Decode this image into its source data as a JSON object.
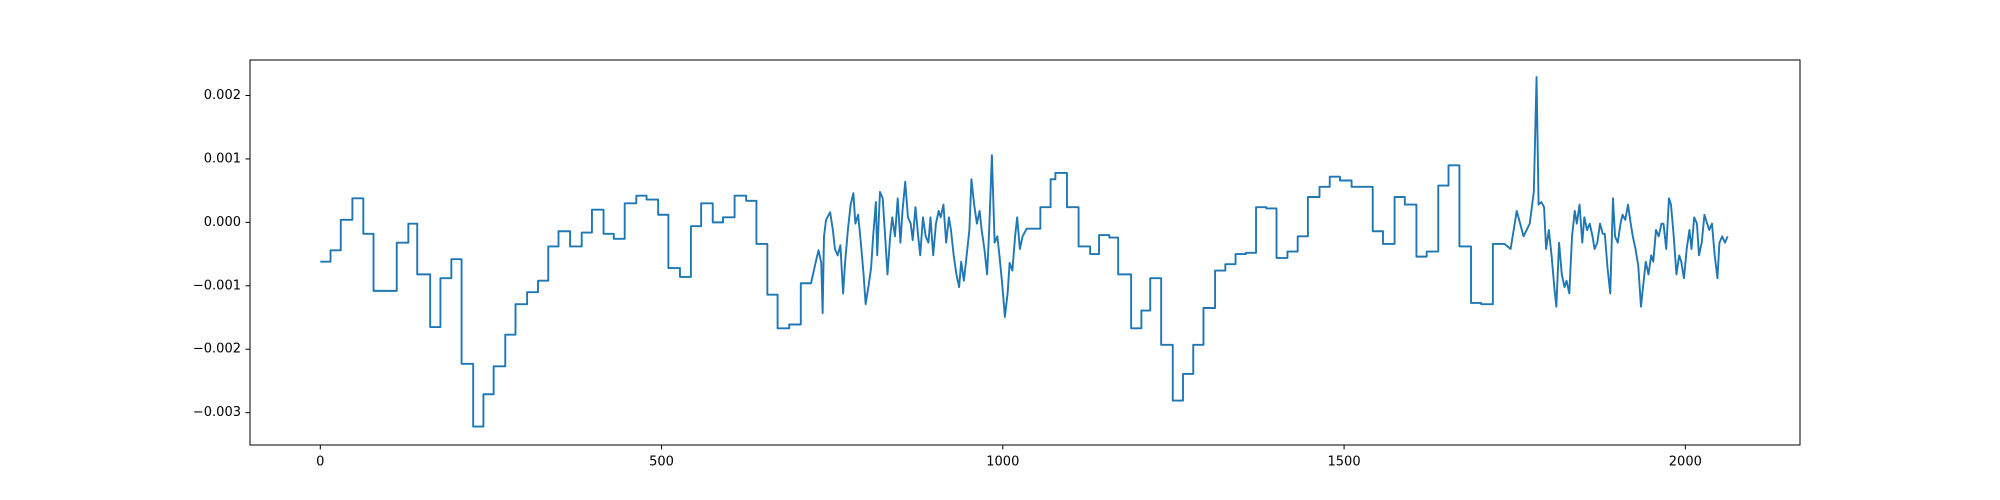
{
  "chart_data": {
    "type": "line",
    "color": "#1f77b4",
    "xlim": [
      -103,
      2168
    ],
    "ylim": [
      -0.00351,
      0.00256
    ],
    "xticks": [
      0,
      500,
      1000,
      1500,
      2000
    ],
    "yticks": [
      {
        "value": -0.003,
        "label": "−0.003"
      },
      {
        "value": -0.002,
        "label": "−0.002"
      },
      {
        "value": -0.001,
        "label": "−0.001"
      },
      {
        "value": 0,
        "label": "0.000"
      },
      {
        "value": 0.001,
        "label": "0.001"
      },
      {
        "value": 0.002,
        "label": "0.002"
      }
    ],
    "x": [
      0,
      15,
      15,
      30,
      30,
      47,
      47,
      63,
      63,
      78,
      78,
      112,
      112,
      129,
      129,
      142,
      142,
      161,
      161,
      176,
      176,
      192,
      192,
      207,
      207,
      224,
      224,
      239,
      239,
      254,
      254,
      271,
      271,
      286,
      286,
      303,
      303,
      319,
      319,
      334,
      334,
      349,
      349,
      366,
      366,
      383,
      383,
      398,
      398,
      415,
      415,
      430,
      430,
      446,
      446,
      463,
      463,
      478,
      478,
      495,
      495,
      510,
      510,
      527,
      527,
      543,
      543,
      558,
      558,
      575,
      575,
      590,
      590,
      607,
      607,
      624,
      624,
      639,
      639,
      655,
      655,
      670,
      670,
      687,
      687,
      704,
      704,
      719,
      726,
      730,
      734,
      736,
      738,
      741,
      747,
      751,
      754,
      758,
      762,
      766,
      769,
      773,
      777,
      781,
      784,
      788,
      792,
      796,
      799,
      803,
      807,
      810,
      814,
      816,
      820,
      824,
      827,
      831,
      835,
      838,
      842,
      846,
      850,
      853,
      857,
      861,
      865,
      868,
      872,
      876,
      879,
      883,
      887,
      891,
      894,
      898,
      902,
      906,
      909,
      913,
      917,
      921,
      924,
      928,
      932,
      936,
      939,
      943,
      947,
      951,
      954,
      958,
      962,
      966,
      969,
      973,
      977,
      980,
      984,
      988,
      992,
      995,
      999,
      1003,
      1007,
      1010,
      1014,
      1018,
      1021,
      1025,
      1029,
      1035,
      1055,
      1055,
      1070,
      1070,
      1077,
      1077,
      1094,
      1094,
      1111,
      1111,
      1128,
      1128,
      1141,
      1141,
      1156,
      1156,
      1169,
      1169,
      1188,
      1188,
      1203,
      1203,
      1216,
      1216,
      1232,
      1232,
      1249,
      1249,
      1264,
      1264,
      1279,
      1279,
      1294,
      1294,
      1311,
      1311,
      1326,
      1326,
      1341,
      1341,
      1356,
      1356,
      1371,
      1371,
      1386,
      1386,
      1401,
      1401,
      1417,
      1417,
      1432,
      1432,
      1447,
      1447,
      1464,
      1464,
      1479,
      1479,
      1494,
      1494,
      1511,
      1511,
      1542,
      1542,
      1557,
      1557,
      1574,
      1574,
      1589,
      1589,
      1606,
      1606,
      1621,
      1621,
      1638,
      1638,
      1653,
      1653,
      1669,
      1669,
      1686,
      1686,
      1701,
      1701,
      1718,
      1718,
      1735,
      1744,
      1753,
      1763,
      1772,
      1778,
      1782,
      1785,
      1789,
      1793,
      1796,
      1800,
      1804,
      1808,
      1811,
      1815,
      1819,
      1823,
      1826,
      1830,
      1834,
      1838,
      1841,
      1845,
      1849,
      1852,
      1856,
      1860,
      1864,
      1867,
      1871,
      1875,
      1879,
      1882,
      1886,
      1890,
      1894,
      1897,
      1901,
      1905,
      1908,
      1912,
      1916,
      1920,
      1923,
      1927,
      1931,
      1935,
      1938,
      1942,
      1946,
      1950,
      1953,
      1957,
      1961,
      1965,
      1968,
      1972,
      1976,
      1979,
      1983,
      1987,
      1991,
      1994,
      1998,
      2002,
      2006,
      2009,
      2013,
      2017,
      2020,
      2024,
      2028,
      2032,
      2035,
      2039,
      2043,
      2047,
      2050,
      2054,
      2058,
      2062
    ],
    "values": [
      -0.00062,
      -0.00062,
      -0.00044,
      -0.00044,
      4e-05,
      4e-05,
      0.00038,
      0.00038,
      -0.00018,
      -0.00018,
      -0.00108,
      -0.00108,
      -0.00032,
      -0.00032,
      -2e-05,
      -2e-05,
      -0.00082,
      -0.00082,
      -0.00165,
      -0.00165,
      -0.00088,
      -0.00088,
      -0.00058,
      -0.00058,
      -0.00223,
      -0.00223,
      -0.00322,
      -0.00322,
      -0.00271,
      -0.00271,
      -0.00227,
      -0.00227,
      -0.00177,
      -0.00177,
      -0.00129,
      -0.00129,
      -0.0011,
      -0.0011,
      -0.00092,
      -0.00092,
      -0.00038,
      -0.00038,
      -0.00014,
      -0.00014,
      -0.00038,
      -0.00038,
      -0.00016,
      -0.00016,
      0.0002,
      0.0002,
      -0.00018,
      -0.00018,
      -0.00026,
      -0.00026,
      0.0003,
      0.0003,
      0.00042,
      0.00042,
      0.00036,
      0.00036,
      0.00012,
      0.00012,
      -0.00072,
      -0.00072,
      -0.00086,
      -0.00086,
      -6e-05,
      -6e-05,
      0.0003,
      0.0003,
      0,
      0,
      8e-05,
      8e-05,
      0.00042,
      0.00042,
      0.00034,
      0.00034,
      -0.00034,
      -0.00034,
      -0.00114,
      -0.00114,
      -0.00167,
      -0.00167,
      -0.00161,
      -0.00161,
      -0.00096,
      -0.00096,
      -0.00062,
      -0.00044,
      -0.00064,
      -0.00143,
      -0.00022,
      4e-05,
      0.00016,
      -0.00012,
      -0.00042,
      -0.00052,
      -0.00036,
      -0.00112,
      -0.00062,
      -0.00012,
      0.00028,
      0.00046,
      -2e-05,
      0.00012,
      -0.00032,
      -0.00082,
      -0.00129,
      -0.00102,
      -0.00072,
      -0.00022,
      0.00032,
      -0.00052,
      0.00048,
      0.00038,
      -0.00012,
      -0.00082,
      -0.00022,
      8e-05,
      -0.00022,
      0.00038,
      -0.00032,
      0.00018,
      0.00064,
      8e-05,
      -2e-05,
      -0.00028,
      0.00024,
      -0.00022,
      -0.00052,
      8e-05,
      -0.00022,
      -0.00032,
      8e-05,
      -0.00052,
      -2e-05,
      0.00018,
      8e-05,
      0.00028,
      -0.00032,
      8e-05,
      -0.00012,
      -0.00052,
      -0.00082,
      -0.00102,
      -0.00062,
      -0.00092,
      -0.00052,
      -0.00012,
      0.00068,
      0.00028,
      -2e-05,
      0.00018,
      -0.00012,
      -0.00042,
      -0.00082,
      -0.00012,
      0.00106,
      -0.00032,
      -0.00022,
      -0.00052,
      -0.00096,
      -0.00149,
      -0.00112,
      -0.00064,
      -0.00076,
      -0.00022,
      8e-05,
      -0.00042,
      -0.00022,
      -0.0001,
      -0.0001,
      0.00024,
      0.00024,
      0.00068,
      0.00068,
      0.00078,
      0.00078,
      0.00024,
      0.00024,
      -0.00038,
      -0.00038,
      -0.0005,
      -0.0005,
      -0.0002,
      -0.0002,
      -0.00024,
      -0.00024,
      -0.00082,
      -0.00082,
      -0.00167,
      -0.00167,
      -0.00139,
      -0.00139,
      -0.00088,
      -0.00088,
      -0.00193,
      -0.00193,
      -0.00281,
      -0.00281,
      -0.00239,
      -0.00239,
      -0.00193,
      -0.00193,
      -0.00135,
      -0.00135,
      -0.00076,
      -0.00076,
      -0.00066,
      -0.00066,
      -0.0005,
      -0.0005,
      -0.00048,
      -0.00048,
      0.00024,
      0.00024,
      0.00022,
      0.00022,
      -0.00056,
      -0.00056,
      -0.00046,
      -0.00046,
      -0.00022,
      -0.00022,
      0.0004,
      0.0004,
      0.00056,
      0.00056,
      0.00072,
      0.00072,
      0.00066,
      0.00066,
      0.00056,
      0.00056,
      -0.00014,
      -0.00014,
      -0.00034,
      -0.00034,
      0.0004,
      0.0004,
      0.00028,
      0.00028,
      -0.00054,
      -0.00054,
      -0.00046,
      -0.00046,
      0.00058,
      0.00058,
      0.0009,
      0.0009,
      -0.00038,
      -0.00038,
      -0.00127,
      -0.00127,
      -0.00129,
      -0.00129,
      -0.00034,
      -0.00034,
      -0.00042,
      0.00018,
      -0.00022,
      -2e-05,
      0.00048,
      0.00229,
      0.00028,
      0.00032,
      0.00024,
      -0.00042,
      -0.00012,
      -0.00052,
      -0.00102,
      -0.00133,
      -0.00032,
      -0.00082,
      -0.00102,
      -0.00092,
      -0.00112,
      -0.00022,
      0.00018,
      -2e-05,
      0.00028,
      -0.00032,
      8e-05,
      -0.00012,
      -2e-05,
      -0.00022,
      -0.00042,
      -0.00032,
      -2e-05,
      -0.00018,
      -0.00018,
      -0.00072,
      -0.00112,
      0.00038,
      -0.00022,
      -0.00032,
      -2e-05,
      0.00012,
      4e-05,
      0.00028,
      -2e-05,
      -0.00022,
      -0.00042,
      -0.00068,
      -0.00133,
      -0.00102,
      -0.00062,
      -0.00082,
      -0.00052,
      -0.00062,
      -0.00012,
      -0.00022,
      -2e-05,
      -2e-05,
      -0.00042,
      0.00038,
      0.00028,
      -0.00022,
      -0.00082,
      -0.00052,
      -0.00062,
      -0.00088,
      -0.00042,
      -0.00012,
      -0.00042,
      8e-05,
      -2e-05,
      -0.00052,
      -0.00032,
      0.00012,
      -2e-05,
      -0.00012,
      -2e-05,
      -0.00052,
      -0.00088,
      -0.00032,
      -0.00022,
      -0.00032,
      -0.00022
    ]
  }
}
